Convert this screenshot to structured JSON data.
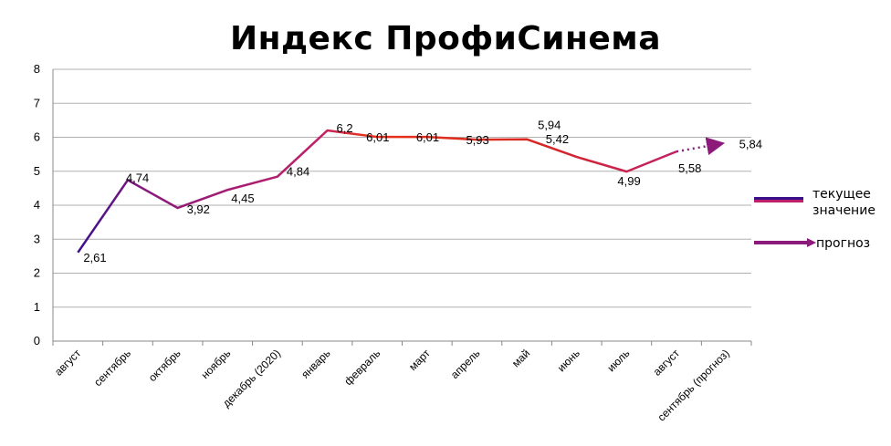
{
  "chart_data": {
    "type": "line",
    "title": "Индекс ПрофиСинема",
    "categories": [
      "август",
      "сентябрь",
      "октябрь",
      "ноябрь",
      "декабрь (2020)",
      "январь",
      "февраль",
      "март",
      "апрель",
      "май",
      "июнь",
      "июль",
      "август",
      "сентябрь (прогноз)"
    ],
    "series": [
      {
        "name": "текущее значение",
        "values": [
          2.61,
          4.74,
          3.92,
          4.45,
          4.84,
          6.2,
          6.01,
          6.01,
          5.93,
          5.94,
          5.42,
          4.99,
          5.58,
          null
        ],
        "labels": [
          "2,61",
          "4,74",
          "3,92",
          "4,45",
          "4,84",
          "6,2",
          "6,01",
          "6,01",
          "5,93",
          "5,94",
          "5,42",
          "4,99",
          "5,58",
          ""
        ]
      },
      {
        "name": "прогноз",
        "values": [
          null,
          null,
          null,
          null,
          null,
          null,
          null,
          null,
          null,
          null,
          null,
          null,
          5.58,
          5.84
        ],
        "labels": [
          "",
          "",
          "",
          "",
          "",
          "",
          "",
          "",
          "",
          "",
          "",
          "",
          "",
          "5,84"
        ]
      }
    ],
    "ylim": [
      0,
      8
    ],
    "yticks": [
      "0",
      "1",
      "2",
      "3",
      "4",
      "5",
      "6",
      "7",
      "8"
    ],
    "grid": true,
    "legend": "right",
    "colors": {
      "start": "#3a0f8a",
      "middle": "#c0206a",
      "peak": "#e8331a",
      "forecast": "#8b1a7a",
      "grid": "#b0b0b0"
    }
  }
}
